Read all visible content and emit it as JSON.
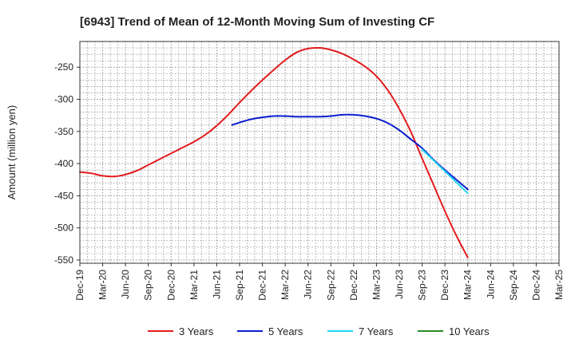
{
  "chart_data": {
    "type": "line",
    "title": "[6943]  Trend of Mean of 12-Month Moving Sum of Investing CF",
    "xlabel": "",
    "ylabel": "Amount (million yen)",
    "ylim": [
      -555,
      -210
    ],
    "yticks": [
      -250,
      -300,
      -350,
      -400,
      -450,
      -500,
      -550
    ],
    "ytick_labels": [
      "-250",
      "-300",
      "-350",
      "-400",
      "-450",
      "-500",
      "-550"
    ],
    "x_tick_labels": [
      "Dec-19",
      "Mar-20",
      "Jun-20",
      "Sep-20",
      "Dec-20",
      "Mar-21",
      "Jun-21",
      "Sep-21",
      "Dec-21",
      "Mar-22",
      "Jun-22",
      "Sep-22",
      "Dec-22",
      "Mar-23",
      "Jun-23",
      "Sep-23",
      "Dec-23",
      "Mar-24",
      "Jun-24",
      "Sep-24",
      "Dec-24",
      "Mar-25"
    ],
    "grid": true,
    "legend_position": "bottom",
    "series": [
      {
        "name": "3 Years",
        "color": "#e31a1c",
        "x": [
          0,
          0.5,
          1,
          1.5,
          2,
          2.5,
          3,
          3.5,
          4,
          4.5,
          5,
          5.5,
          6,
          6.5,
          7,
          7.5,
          8,
          8.5,
          9,
          9.5,
          10,
          10.5,
          11,
          11.5,
          12,
          12.5,
          13,
          13.5,
          14,
          14.5,
          15,
          15.5,
          16,
          16.5,
          17
        ],
        "values": [
          -413,
          -415,
          -419,
          -420,
          -417,
          -411,
          -402,
          -393,
          -384,
          -375,
          -366,
          -355,
          -341,
          -324,
          -305,
          -287,
          -270,
          -254,
          -239,
          -227,
          -221,
          -220,
          -223,
          -229,
          -238,
          -249,
          -264,
          -286,
          -315,
          -350,
          -392,
          -433,
          -474,
          -512,
          -546
        ]
      },
      {
        "name": "5 Years",
        "color": "#0a1ecf",
        "x": [
          6.67,
          7,
          7.5,
          8,
          8.5,
          9,
          9.5,
          10,
          10.5,
          11,
          11.5,
          12,
          12.5,
          13,
          13.5,
          14,
          14.5,
          15,
          15.5,
          16,
          16.5,
          17
        ],
        "values": [
          -340,
          -336,
          -331,
          -328,
          -326,
          -326,
          -327,
          -327,
          -327,
          -326,
          -324,
          -324,
          -326,
          -330,
          -337,
          -348,
          -362,
          -376,
          -394,
          -410,
          -425,
          -440
        ]
      },
      {
        "name": "7 Years",
        "color": "#22d8f0",
        "x": [
          15,
          15.5,
          16,
          16.5,
          17
        ],
        "values": [
          -378,
          -395,
          -412,
          -429,
          -446
        ]
      },
      {
        "name": "10 Years",
        "color": "#2a8a2a",
        "x": [],
        "values": []
      }
    ]
  }
}
